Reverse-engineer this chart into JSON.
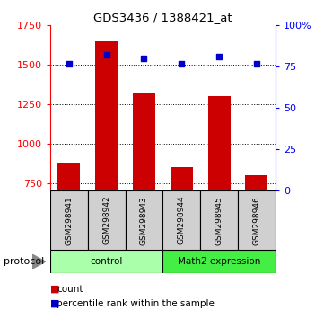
{
  "title": "GDS3436 / 1388421_at",
  "samples": [
    "GSM298941",
    "GSM298942",
    "GSM298943",
    "GSM298944",
    "GSM298945",
    "GSM298946"
  ],
  "counts": [
    875,
    1650,
    1325,
    850,
    1300,
    800
  ],
  "percentile_ranks": [
    77,
    82,
    80,
    77,
    81,
    77
  ],
  "bar_color": "#cc0000",
  "scatter_color": "#0000cc",
  "ylim_left": [
    700,
    1750
  ],
  "ylim_right": [
    0,
    100
  ],
  "yticks_left": [
    750,
    1000,
    1250,
    1500,
    1750
  ],
  "ytick_labels_left": [
    "750",
    "1000",
    "1250",
    "1500",
    "1750"
  ],
  "yticks_right": [
    0,
    25,
    50,
    75,
    100
  ],
  "ytick_labels_right": [
    "0",
    "25",
    "50",
    "75",
    "100%"
  ],
  "groups": [
    {
      "label": "control",
      "indices": [
        0,
        1,
        2
      ],
      "color": "#aaffaa"
    },
    {
      "label": "Math2 expression",
      "indices": [
        3,
        4,
        5
      ],
      "color": "#44ee44"
    }
  ],
  "protocol_label": "protocol",
  "legend_items": [
    {
      "label": "count",
      "color": "#cc0000"
    },
    {
      "label": "percentile rank within the sample",
      "color": "#0000cc"
    }
  ],
  "bar_width": 0.6,
  "bar_bottom": 700,
  "sample_box_color": "#d0d0d0"
}
